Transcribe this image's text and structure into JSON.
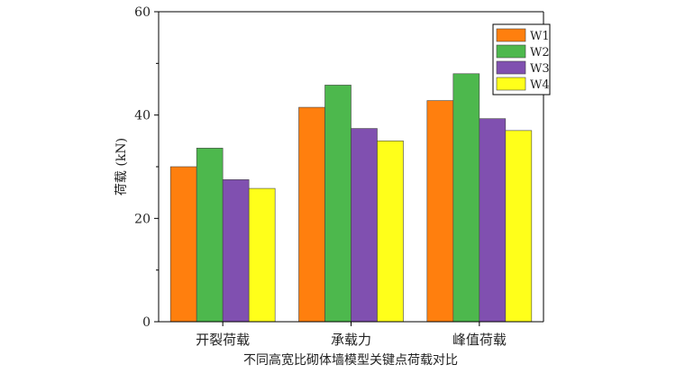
{
  "chart_data": {
    "type": "bar",
    "categories": [
      "开裂荷载",
      "承载力",
      "峰值荷载"
    ],
    "series": [
      {
        "name": "W1",
        "color": "#ff7f0e",
        "values": [
          30.0,
          41.5,
          42.8
        ]
      },
      {
        "name": "W2",
        "color": "#4db84d",
        "values": [
          33.6,
          45.8,
          48.0
        ]
      },
      {
        "name": "W3",
        "color": "#8050b0",
        "values": [
          27.5,
          37.4,
          39.3
        ]
      },
      {
        "name": "W4",
        "color": "#ffff1a",
        "values": [
          25.8,
          35.0,
          37.0
        ]
      }
    ],
    "title": "",
    "xlabel": "不同高宽比砌体墙模型关键点荷载对比",
    "ylabel": "荷载 (kN)",
    "ylim": [
      0,
      60
    ],
    "yticks": [
      0,
      20,
      40,
      60
    ],
    "grid": false,
    "legend_position": "top-right"
  }
}
